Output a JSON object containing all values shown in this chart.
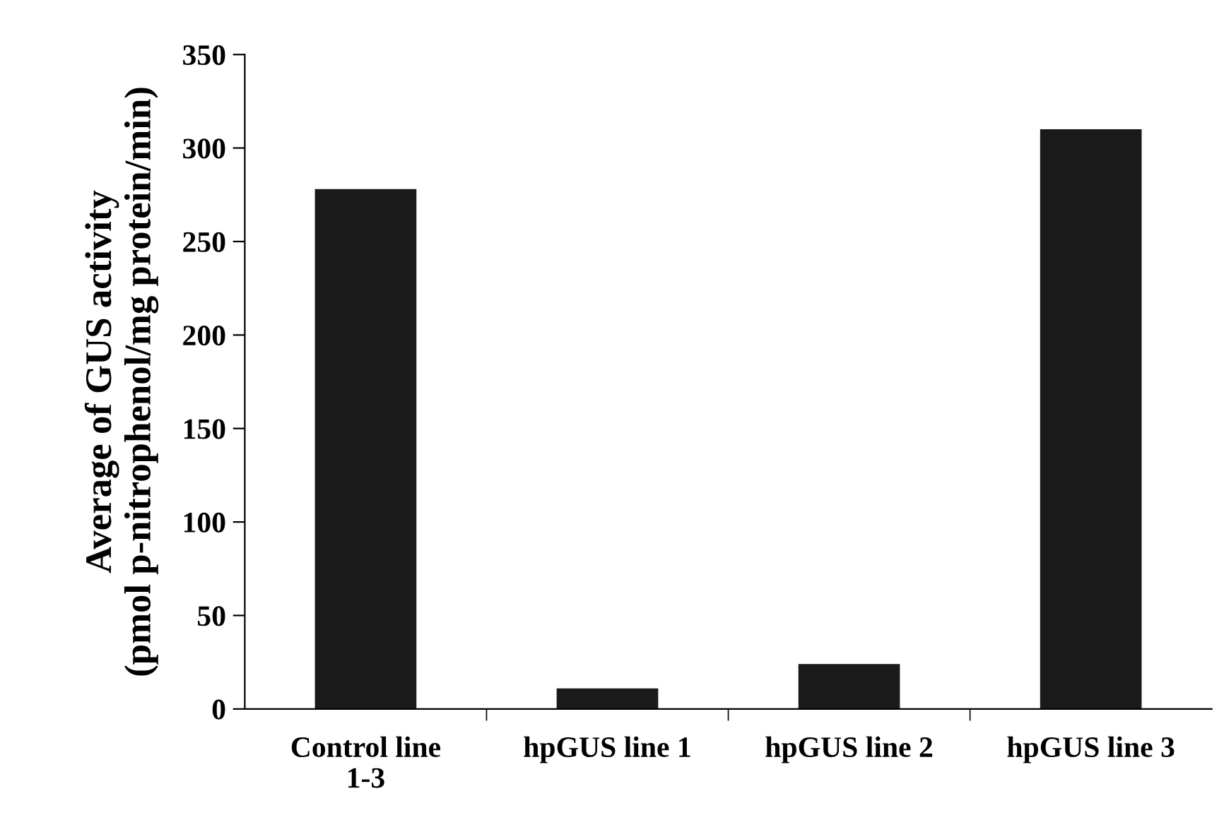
{
  "chart_data": {
    "type": "bar",
    "ylabel": "Average of GUS activity\n(pmol p-nitrophenol/mg protein/min)",
    "categories": [
      "Control line\n1-3",
      "hpGUS line 1",
      "hpGUS line 2",
      "hpGUS line 3"
    ],
    "values": [
      278,
      11,
      24,
      310
    ],
    "color": "#1a1a1a",
    "ylim": [
      0,
      350
    ],
    "yticks": [
      0,
      50,
      100,
      150,
      200,
      250,
      300,
      350
    ],
    "grid": false
  }
}
